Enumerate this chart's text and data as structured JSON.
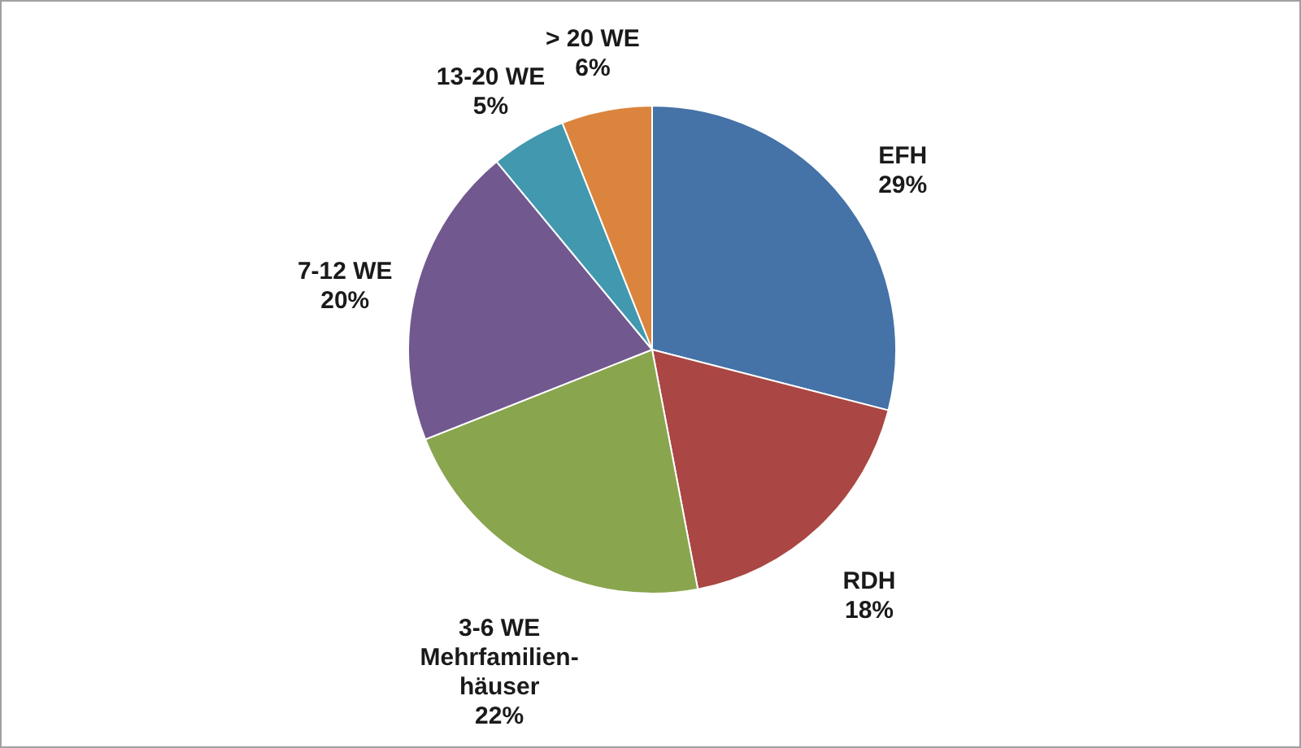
{
  "chart_data": {
    "type": "pie",
    "categories": [
      "EFH",
      "RDH",
      "3-6 WE\nMehrfamilien-\nhäuser",
      "7-12 WE",
      "13-20 WE",
      "> 20 WE"
    ],
    "values": [
      29,
      18,
      22,
      20,
      5,
      6
    ],
    "colors": [
      "#4572a7",
      "#aa4643",
      "#89a54e",
      "#71588f",
      "#4198af",
      "#db843d"
    ],
    "value_labels": [
      "29%",
      "18%",
      "22%",
      "20%",
      "5%",
      "6%"
    ]
  }
}
